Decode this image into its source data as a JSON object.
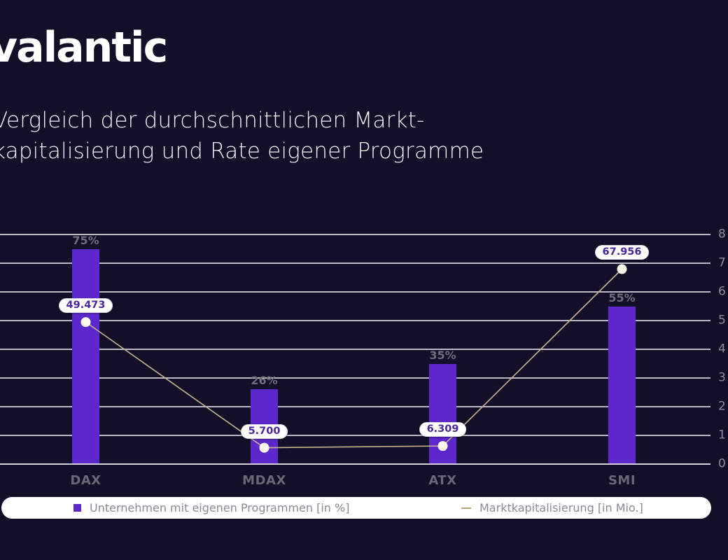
{
  "brand": {
    "logo_text": "valantic"
  },
  "title": {
    "line1": "Vergleich der durchschnittlichen Markt-",
    "line2": "kapitalisierung und Rate eigener Programme"
  },
  "chart_data": {
    "type": "bar",
    "subtype": "bar-line-combo",
    "categories": [
      "DAX",
      "MDAX",
      "ATX",
      "SMI"
    ],
    "series": [
      {
        "name": "Unternehmen mit eigenen Programmen [in %]",
        "type": "bar",
        "values": [
          75,
          26,
          35,
          55
        ],
        "labels": [
          "75%",
          "26%",
          "35%",
          "55%"
        ],
        "color": "#5c28cb",
        "axis_min": 0,
        "axis_max": 80,
        "axis_visible": false
      },
      {
        "name": "Marktkapitalisierung [in Mio.]",
        "type": "line",
        "values": [
          49473,
          5700,
          6309,
          67956
        ],
        "labels": [
          "49.473",
          "5.700",
          "6.309",
          "67.956"
        ],
        "color": "#c6b48c",
        "marker_color": "#fdf8ec",
        "axis_min": 0,
        "axis_max": 80000
      }
    ],
    "right_axis_tick_labels": [
      "8",
      "7",
      "6",
      "5",
      "4",
      "3",
      "2",
      "1",
      "0"
    ],
    "grid": true,
    "legend_position": "bottom"
  },
  "legend": {
    "items": [
      {
        "swatch": "purple-square",
        "label": "Unternehmen mit eigenen Programmen [in %]"
      },
      {
        "swatch": "tan-dash",
        "label": "Marktkapitalisierung [in Mio.]"
      }
    ]
  },
  "colors": {
    "background": "#130f29",
    "bar": "#5c28cb",
    "line": "#c6b48c",
    "marker": "#fdf8ec",
    "gridline": "#c9c5d4",
    "pill_text": "#4c26a0",
    "category_label": "#6b6776",
    "axis_label": "#8e8b99",
    "legend_text": "#8b8994",
    "title_text": "#f2f1f6"
  }
}
